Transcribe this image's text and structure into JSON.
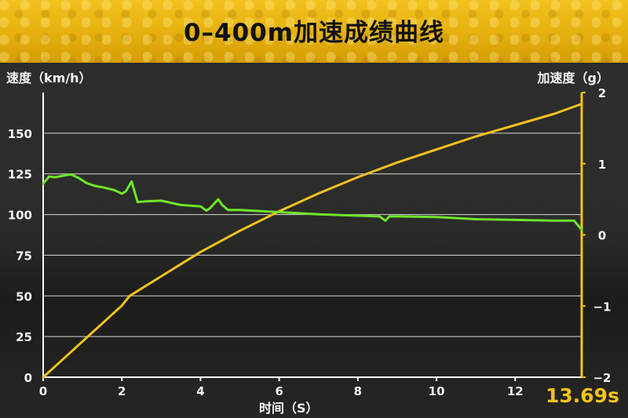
{
  "title": "0–400m加速成绩曲线",
  "time_badge": "13.69s",
  "colors": {
    "banner": "#e6b210",
    "speed_line": "#6ee62a",
    "accel_line": "#f2c21e",
    "axis": "#ffffff"
  },
  "chart_data": {
    "type": "line",
    "xlabel": "时间（S）",
    "ylabel": "速度（km/h）",
    "y2label": "加速度（g）",
    "xlim": [
      0,
      13.69
    ],
    "ylim": [
      0,
      175
    ],
    "y2lim": [
      -2,
      2
    ],
    "x_ticks": [
      "0",
      "2",
      "4",
      "6",
      "8",
      "10",
      "12"
    ],
    "y_ticks": [
      "0",
      "25",
      "50",
      "75",
      "100",
      "125",
      "150"
    ],
    "y2_ticks": [
      "−2",
      "−1",
      "0",
      "1",
      "2"
    ],
    "grid": true,
    "series": [
      {
        "axis": "left",
        "color": "#f2c21e",
        "x": [
          0,
          0.5,
          1,
          1.5,
          2,
          2.2,
          3,
          4,
          5,
          6,
          7,
          8,
          9,
          10,
          11,
          12,
          13,
          13.69
        ],
        "y": [
          0,
          11,
          22,
          33,
          44,
          50,
          62,
          77,
          90,
          102,
          113,
          123,
          132,
          140,
          148,
          155,
          162,
          168
        ]
      },
      {
        "axis": "right",
        "color": "#6ee62a",
        "x": [
          0,
          0.15,
          0.3,
          0.5,
          0.7,
          0.9,
          1.1,
          1.3,
          1.5,
          1.8,
          2.0,
          2.1,
          2.25,
          2.4,
          2.6,
          3.0,
          3.5,
          4.0,
          4.15,
          4.25,
          4.45,
          4.55,
          4.7,
          5.0,
          6.0,
          7.0,
          8.0,
          8.55,
          8.7,
          8.8,
          9.0,
          10.0,
          11.0,
          12.0,
          13.0,
          13.5,
          13.69
        ],
        "y": [
          0.72,
          0.82,
          0.81,
          0.83,
          0.85,
          0.8,
          0.73,
          0.69,
          0.67,
          0.63,
          0.58,
          0.61,
          0.75,
          0.46,
          0.47,
          0.48,
          0.42,
          0.4,
          0.34,
          0.38,
          0.5,
          0.42,
          0.35,
          0.35,
          0.32,
          0.29,
          0.27,
          0.26,
          0.2,
          0.26,
          0.26,
          0.25,
          0.22,
          0.21,
          0.2,
          0.2,
          0.07
        ]
      }
    ]
  }
}
